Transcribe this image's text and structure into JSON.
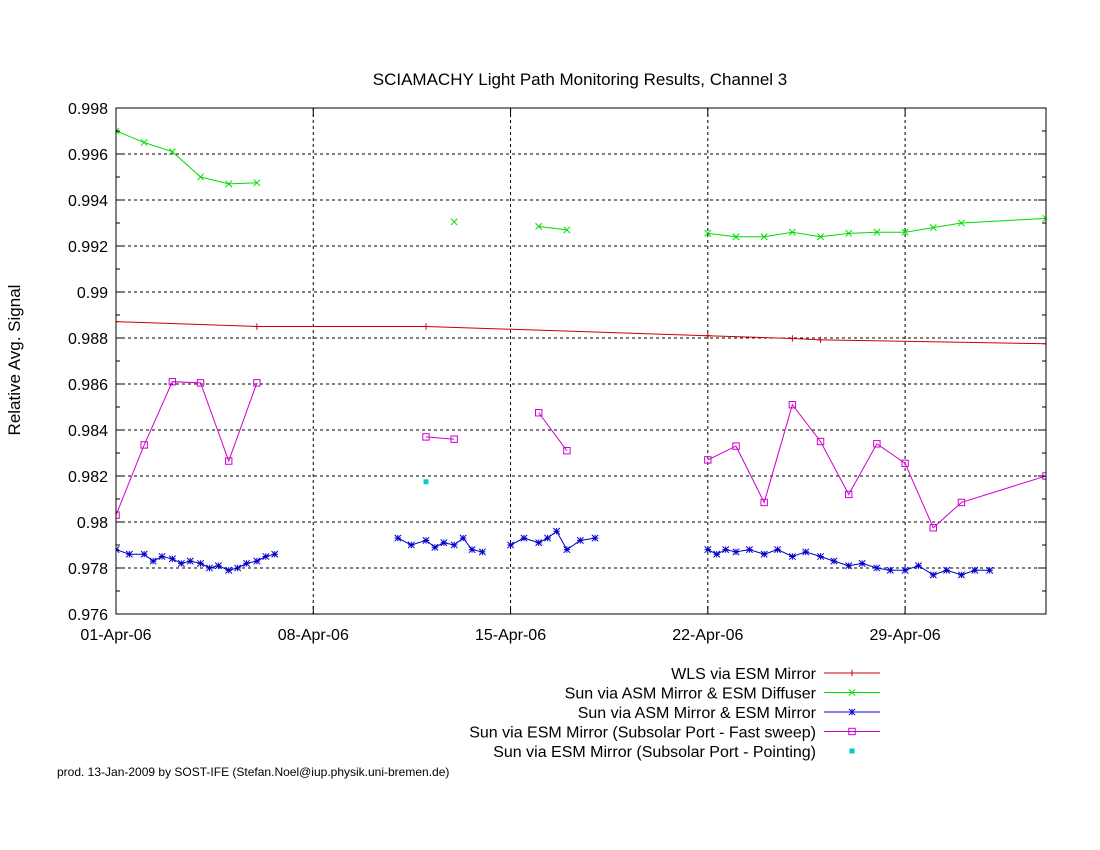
{
  "chart_data": {
    "type": "line",
    "title": "SCIAMACHY Light Path Monitoring Results, Channel 3",
    "xlabel": "",
    "ylabel": "Relative Avg. Signal",
    "x_type": "date",
    "xlim": [
      "2006-04-01",
      "2006-05-04"
    ],
    "ylim": [
      0.976,
      0.998
    ],
    "x_ticks": [
      {
        "date": "2006-04-01",
        "label": "01-Apr-06"
      },
      {
        "date": "2006-04-08",
        "label": "08-Apr-06"
      },
      {
        "date": "2006-04-15",
        "label": "15-Apr-06"
      },
      {
        "date": "2006-04-22",
        "label": "22-Apr-06"
      },
      {
        "date": "2006-04-29",
        "label": "29-Apr-06"
      }
    ],
    "y_ticks": [
      {
        "value": 0.976,
        "label": "0.976"
      },
      {
        "value": 0.978,
        "label": "0.978"
      },
      {
        "value": 0.98,
        "label": "0.98"
      },
      {
        "value": 0.982,
        "label": "0.982"
      },
      {
        "value": 0.984,
        "label": "0.984"
      },
      {
        "value": 0.986,
        "label": "0.986"
      },
      {
        "value": 0.988,
        "label": "0.988"
      },
      {
        "value": 0.99,
        "label": "0.99"
      },
      {
        "value": 0.992,
        "label": "0.992"
      },
      {
        "value": 0.994,
        "label": "0.994"
      },
      {
        "value": 0.996,
        "label": "0.996"
      },
      {
        "value": 0.998,
        "label": "0.998"
      }
    ],
    "grid": true,
    "legend_position": "bottom-right",
    "series": [
      {
        "name": "WLS via ESM Mirror",
        "color": "#cc0000",
        "marker": "plus",
        "segments": [
          [
            [
              "2006-04-01",
              0.98871
            ],
            [
              "2006-04-06",
              0.9885
            ],
            [
              "2006-04-12",
              0.9885
            ],
            [
              "2006-04-22",
              0.9881
            ],
            [
              "2006-04-25",
              0.98798
            ],
            [
              "2006-04-26",
              0.98792
            ],
            [
              "2006-05-04",
              0.98775
            ]
          ]
        ]
      },
      {
        "name": "Sun via ASM Mirror & ESM Diffuser",
        "color": "#00dd00",
        "marker": "cross",
        "segments": [
          [
            [
              "2006-04-01",
              0.997
            ],
            [
              "2006-04-02",
              0.9965
            ],
            [
              "2006-04-03",
              0.9961
            ],
            [
              "2006-04-04",
              0.995
            ],
            [
              "2006-04-05",
              0.9947
            ],
            [
              "2006-04-06",
              0.99475
            ]
          ],
          [
            [
              "2006-04-13",
              0.99305
            ]
          ],
          [
            [
              "2006-04-16",
              0.99285
            ],
            [
              "2006-04-17",
              0.9927
            ]
          ],
          [
            [
              "2006-04-22",
              0.99255
            ],
            [
              "2006-04-23",
              0.9924
            ],
            [
              "2006-04-24",
              0.9924
            ],
            [
              "2006-04-25",
              0.9926
            ],
            [
              "2006-04-26",
              0.9924
            ],
            [
              "2006-04-27",
              0.99255
            ],
            [
              "2006-04-28",
              0.9926
            ],
            [
              "2006-04-29",
              0.9926
            ],
            [
              "2006-04-30",
              0.9928
            ],
            [
              "2006-05-01",
              0.993
            ],
            [
              "2006-05-04",
              0.9932
            ]
          ]
        ]
      },
      {
        "name": "Sun via ASM Mirror & ESM Mirror",
        "color": "#0000cc",
        "marker": "star",
        "dense": true,
        "segments": [
          [
            [
              "2006-04-01",
              0.9788
            ],
            [
              "2006-04-01",
              0.9786
            ],
            [
              "2006-04-02",
              0.9786
            ],
            [
              "2006-04-02",
              0.9783
            ],
            [
              "2006-04-02",
              0.9785
            ],
            [
              "2006-04-03",
              0.9784
            ],
            [
              "2006-04-03",
              0.9782
            ],
            [
              "2006-04-03",
              0.9783
            ],
            [
              "2006-04-04",
              0.9782
            ],
            [
              "2006-04-04",
              0.978
            ],
            [
              "2006-04-04",
              0.9781
            ],
            [
              "2006-04-05",
              0.9779
            ],
            [
              "2006-04-05",
              0.978
            ],
            [
              "2006-04-05",
              0.9782
            ],
            [
              "2006-04-06",
              0.9783
            ],
            [
              "2006-04-06",
              0.9785
            ],
            [
              "2006-04-06",
              0.9786
            ]
          ],
          [
            [
              "2006-04-11",
              0.9793
            ],
            [
              "2006-04-11",
              0.979
            ],
            [
              "2006-04-12",
              0.9792
            ],
            [
              "2006-04-12",
              0.9789
            ],
            [
              "2006-04-12",
              0.9791
            ],
            [
              "2006-04-13",
              0.979
            ],
            [
              "2006-04-13",
              0.9793
            ],
            [
              "2006-04-13",
              0.9788
            ],
            [
              "2006-04-14",
              0.9787
            ]
          ],
          [
            [
              "2006-04-15",
              0.979
            ],
            [
              "2006-04-15",
              0.9793
            ],
            [
              "2006-04-16",
              0.9791
            ],
            [
              "2006-04-16",
              0.9793
            ],
            [
              "2006-04-16",
              0.9796
            ],
            [
              "2006-04-17",
              0.9788
            ],
            [
              "2006-04-17",
              0.9792
            ],
            [
              "2006-04-18",
              0.9793
            ]
          ],
          [
            [
              "2006-04-22",
              0.9788
            ],
            [
              "2006-04-22",
              0.9786
            ],
            [
              "2006-04-22",
              0.9788
            ],
            [
              "2006-04-23",
              0.9787
            ],
            [
              "2006-04-23",
              0.9788
            ],
            [
              "2006-04-24",
              0.9786
            ],
            [
              "2006-04-24",
              0.9788
            ],
            [
              "2006-04-25",
              0.9785
            ],
            [
              "2006-04-25",
              0.9787
            ],
            [
              "2006-04-26",
              0.9785
            ],
            [
              "2006-04-26",
              0.9783
            ],
            [
              "2006-04-27",
              0.9781
            ],
            [
              "2006-04-27",
              0.9782
            ],
            [
              "2006-04-28",
              0.978
            ],
            [
              "2006-04-28",
              0.9779
            ],
            [
              "2006-04-29",
              0.9779
            ],
            [
              "2006-04-29",
              0.9781
            ],
            [
              "2006-04-30",
              0.9777
            ],
            [
              "2006-04-30",
              0.9779
            ],
            [
              "2006-05-01",
              0.9777
            ],
            [
              "2006-05-01",
              0.9779
            ],
            [
              "2006-05-02",
              0.9779
            ]
          ]
        ]
      },
      {
        "name": "Sun via ESM Mirror (Subsolar Port - Fast sweep)",
        "color": "#cc00cc",
        "marker": "square",
        "segments": [
          [
            [
              "2006-04-01",
              0.9803
            ],
            [
              "2006-04-02",
              0.98335
            ],
            [
              "2006-04-03",
              0.9861
            ],
            [
              "2006-04-04",
              0.98605
            ],
            [
              "2006-04-05",
              0.98265
            ],
            [
              "2006-04-06",
              0.98605
            ]
          ],
          [
            [
              "2006-04-12",
              0.9837
            ],
            [
              "2006-04-13",
              0.9836
            ]
          ],
          [
            [
              "2006-04-16",
              0.98475
            ],
            [
              "2006-04-17",
              0.9831
            ]
          ],
          [
            [
              "2006-04-22",
              0.9827
            ],
            [
              "2006-04-23",
              0.9833
            ],
            [
              "2006-04-24",
              0.98085
            ],
            [
              "2006-04-25",
              0.9851
            ],
            [
              "2006-04-26",
              0.9835
            ],
            [
              "2006-04-27",
              0.9812
            ],
            [
              "2006-04-28",
              0.9834
            ],
            [
              "2006-04-29",
              0.98255
            ],
            [
              "2006-04-30",
              0.97975
            ],
            [
              "2006-05-01",
              0.98085
            ],
            [
              "2006-05-04",
              0.982
            ]
          ]
        ]
      },
      {
        "name": "Sun via ESM Mirror (Subsolar Port - Pointing)",
        "color": "#00cccc",
        "marker": "dot",
        "segments": [
          [
            [
              "2006-04-12",
              0.98175
            ]
          ]
        ]
      }
    ]
  },
  "footer": {
    "text": "prod. 13-Jan-2009 by SOST-IFE (Stefan.Noel@iup.physik.uni-bremen.de)"
  }
}
